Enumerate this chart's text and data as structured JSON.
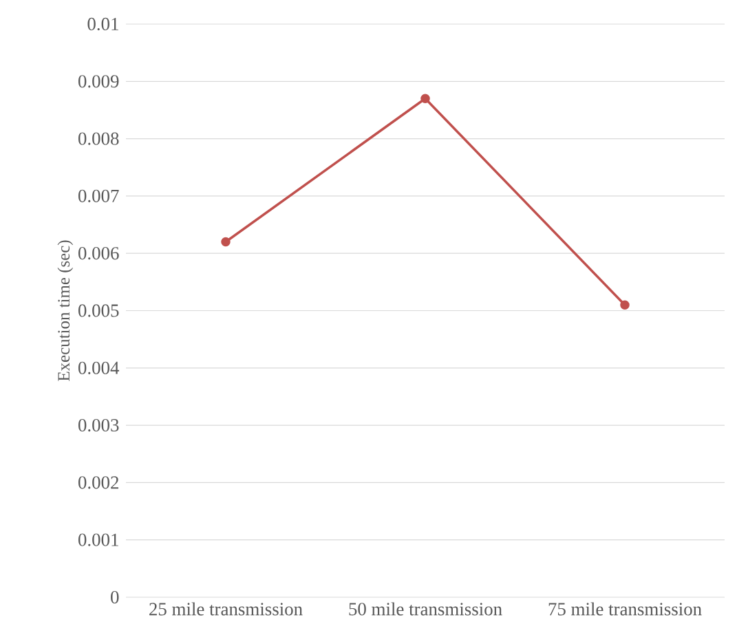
{
  "chart_data": {
    "type": "line",
    "ylabel": "Execution time (sec)",
    "categories": [
      "25 mile transmission",
      "50 mile transmission",
      "75 mile transmission"
    ],
    "series": [
      {
        "color": "#c0504d",
        "values": [
          0.0062,
          0.0087,
          0.0051
        ]
      }
    ],
    "ylim": [
      0,
      0.01
    ],
    "yticks": [
      0,
      0.001,
      0.002,
      0.003,
      0.004,
      0.005,
      0.006,
      0.007,
      0.008,
      0.009,
      0.01
    ],
    "grid": "y",
    "marker": "circle",
    "line_style": "solid"
  }
}
